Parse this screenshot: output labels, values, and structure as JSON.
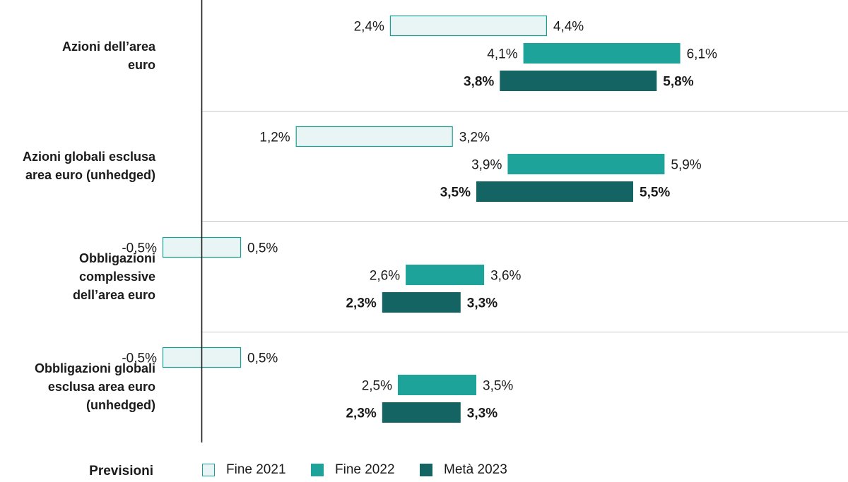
{
  "chart_data": {
    "type": "range-bar",
    "categories": [
      "Azioni dell’area euro",
      "Azioni globali esclusa area euro (unhedged)",
      "Obbligazioni complessive dell’area euro",
      "Obbligazioni globali esclusa area euro (unhedged)"
    ],
    "category_lines": [
      [
        "Azioni dell’area",
        "euro"
      ],
      [
        "Azioni globali esclusa",
        "area euro (unhedged)"
      ],
      [
        "Obbligazioni",
        "complessive",
        "dell’area euro"
      ],
      [
        "Obbligazioni globali",
        "esclusa area euro",
        "(unhedged)"
      ]
    ],
    "series": [
      {
        "name": "Fine 2021",
        "color": "#e8f5f4",
        "border": "#1a9e96",
        "ranges": [
          [
            2.4,
            4.4
          ],
          [
            1.2,
            3.2
          ],
          [
            -0.5,
            0.5
          ],
          [
            -0.5,
            0.5
          ]
        ],
        "labels": [
          [
            "2,4%",
            "4,4%"
          ],
          [
            "1,2%",
            "3,2%"
          ],
          [
            "-0,5%",
            "0,5%"
          ],
          [
            "-0,5%",
            "0,5%"
          ]
        ],
        "bold": false
      },
      {
        "name": "Fine 2022",
        "color": "#1ea39b",
        "border": "#1ea39b",
        "ranges": [
          [
            4.1,
            6.1
          ],
          [
            3.9,
            5.9
          ],
          [
            2.6,
            3.6
          ],
          [
            2.5,
            3.5
          ]
        ],
        "labels": [
          [
            "4,1%",
            "6,1%"
          ],
          [
            "3,9%",
            "5,9%"
          ],
          [
            "2,6%",
            "3,6%"
          ],
          [
            "2,5%",
            "3,5%"
          ]
        ],
        "bold": false
      },
      {
        "name": "Metà 2023",
        "color": "#136462",
        "border": "#136462",
        "ranges": [
          [
            3.8,
            5.8
          ],
          [
            3.5,
            5.5
          ],
          [
            2.3,
            3.3
          ],
          [
            2.3,
            3.3
          ]
        ],
        "labels": [
          [
            "3,8%",
            "5,8%"
          ],
          [
            "3,5%",
            "5,5%"
          ],
          [
            "2,3%",
            "3,3%"
          ],
          [
            "2,3%",
            "3,3%"
          ]
        ],
        "bold": true
      }
    ],
    "legend_title": "Previsioni",
    "legend_position": "bottom",
    "grid": false
  }
}
